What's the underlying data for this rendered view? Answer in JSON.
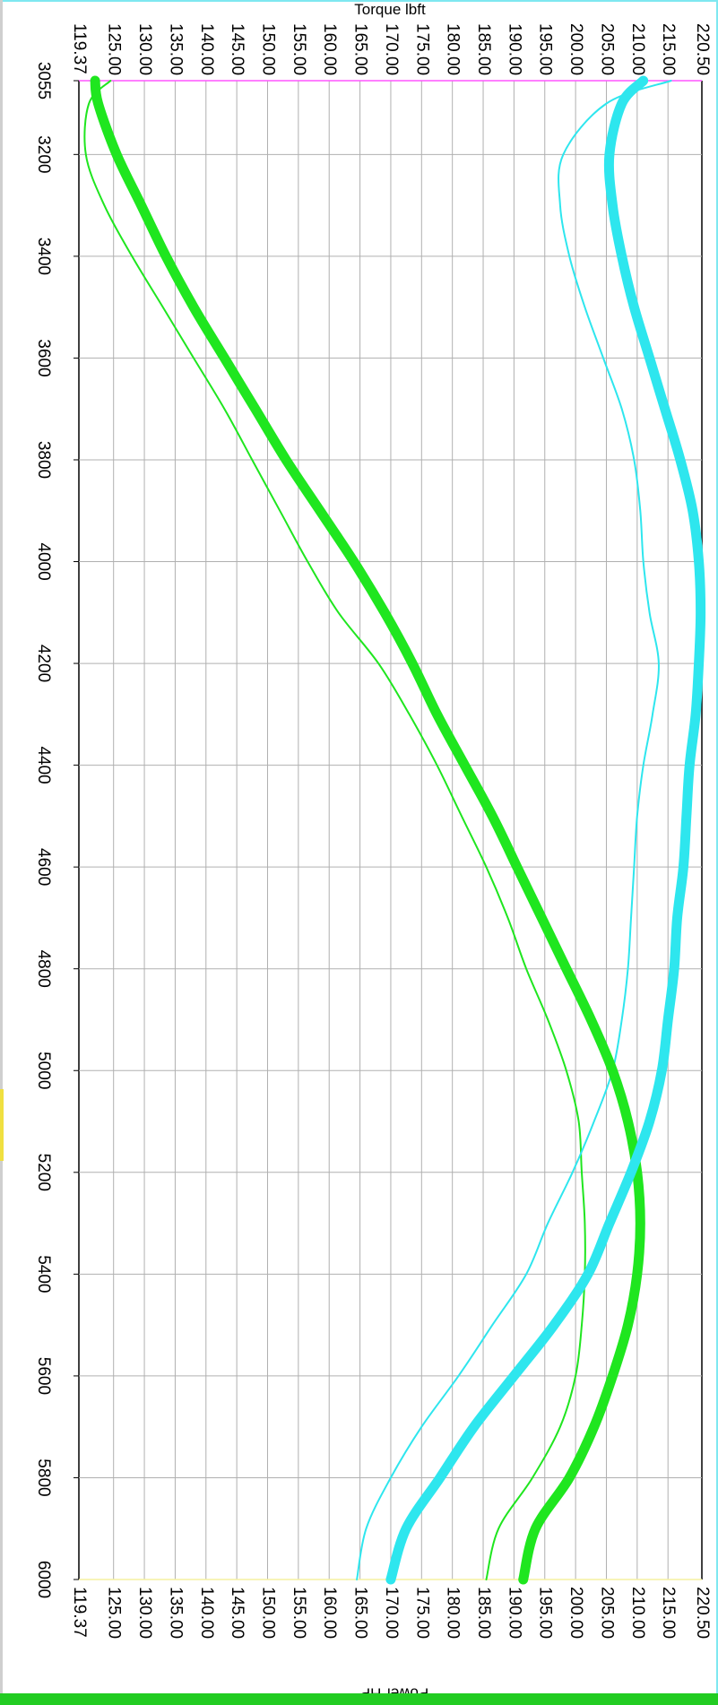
{
  "chart_data": {
    "type": "line",
    "orientation": "rotated-90-clockwise",
    "x_axis": {
      "ticks": [
        3055,
        3200,
        3400,
        3600,
        3800,
        4000,
        4200,
        4400,
        4600,
        4800,
        5000,
        5200,
        5400,
        5600,
        5800,
        6000
      ],
      "tick_labels": [
        "3055",
        "3200",
        "3400",
        "3600",
        "3800",
        "4000",
        "4200",
        "4400",
        "4600",
        "4800",
        "5000",
        "5200",
        "5400",
        "5600",
        "5800",
        "6000"
      ],
      "range": [
        3055,
        6000
      ]
    },
    "y_axis_top": {
      "label": "Torque lbft",
      "range": [
        119.37,
        220.5
      ],
      "tick_labels": [
        "119.37",
        "125.00",
        "130.00",
        "135.00",
        "140.00",
        "145.00",
        "150.00",
        "155.00",
        "160.00",
        "165.00",
        "170.00",
        "175.00",
        "180.00",
        "185.00",
        "190.00",
        "195.00",
        "200.00",
        "205.00",
        "210.00",
        "215.00",
        "220.50"
      ]
    },
    "y_axis_bottom": {
      "label": "Power HP",
      "range": [
        119.37,
        220.5
      ],
      "tick_labels": [
        "119.37",
        "125.00",
        "130.00",
        "135.00",
        "140.00",
        "145.00",
        "150.00",
        "155.00",
        "160.00",
        "165.00",
        "170.00",
        "175.00",
        "180.00",
        "185.00",
        "190.00",
        "195.00",
        "200.00",
        "205.00",
        "210.00",
        "215.00",
        "220.50"
      ]
    },
    "grid": true,
    "legend": "none",
    "series": [
      {
        "color": "#1fe61f",
        "style": "thick",
        "x": [
          3055,
          3100,
          3200,
          3300,
          3400,
          3500,
          3600,
          3700,
          3800,
          3900,
          4000,
          4100,
          4200,
          4300,
          4400,
          4500,
          4600,
          4700,
          4800,
          4900,
          5000,
          5100,
          5200,
          5300,
          5400,
          5500,
          5600,
          5700,
          5800,
          5900,
          6000
        ],
        "values": [
          122,
          122.5,
          125.5,
          129.5,
          133.5,
          138,
          143,
          148,
          153,
          158.5,
          164,
          169,
          173.5,
          177.5,
          182,
          186.5,
          190.5,
          194.5,
          198.5,
          202.5,
          206,
          208.5,
          210,
          210.5,
          210,
          208.5,
          206,
          203,
          199,
          193.5,
          191.5
        ]
      },
      {
        "color": "#1fe61f",
        "style": "thin",
        "x": [
          3055,
          3100,
          3200,
          3300,
          3400,
          3500,
          3600,
          3700,
          3800,
          3900,
          4000,
          4100,
          4200,
          4300,
          4400,
          4500,
          4600,
          4700,
          4800,
          4900,
          5000,
          5100,
          5200,
          5300,
          5400,
          5500,
          5600,
          5700,
          5800,
          5900,
          6000
        ],
        "values": [
          124.5,
          121,
          120.5,
          123.5,
          128,
          133,
          138,
          143,
          147.5,
          152,
          156.5,
          161.5,
          168,
          173,
          177.5,
          181.5,
          185.5,
          189,
          192,
          195.5,
          198.5,
          200.5,
          201,
          201.5,
          201.5,
          201,
          200,
          197.5,
          193,
          187.5,
          185.5
        ]
      },
      {
        "color": "#2ee6ee",
        "style": "thick",
        "x": [
          3055,
          3100,
          3200,
          3300,
          3400,
          3500,
          3600,
          3700,
          3800,
          3900,
          4000,
          4100,
          4200,
          4300,
          4400,
          4500,
          4600,
          4700,
          4800,
          4900,
          5000,
          5100,
          5200,
          5300,
          5400,
          5500,
          5600,
          5700,
          5800,
          5900,
          6000
        ],
        "values": [
          211,
          207.5,
          205.5,
          206,
          207.5,
          209.5,
          212,
          214.5,
          217,
          219,
          220,
          220.3,
          220,
          219.5,
          218.5,
          218,
          217.5,
          216.5,
          216,
          215,
          214,
          212,
          209,
          205.5,
          202,
          196.5,
          190,
          183.5,
          178,
          172.5,
          170
        ]
      },
      {
        "color": "#2ee6ee",
        "style": "thin",
        "x": [
          3055,
          3100,
          3200,
          3300,
          3400,
          3500,
          3600,
          3700,
          3800,
          3900,
          4000,
          4100,
          4200,
          4300,
          4400,
          4500,
          4600,
          4700,
          4800,
          4900,
          5000,
          5100,
          5200,
          5300,
          5400,
          5500,
          5600,
          5700,
          5800,
          5900,
          6000
        ],
        "values": [
          215.5,
          205,
          198,
          197.5,
          199,
          201.5,
          204.5,
          207.5,
          209.5,
          210.5,
          211,
          212,
          213.5,
          212.5,
          211,
          210,
          209.5,
          209,
          208.5,
          207.5,
          206,
          203,
          199.5,
          195.5,
          192,
          186.5,
          181,
          175,
          170,
          166,
          164.5
        ]
      }
    ],
    "colors": {
      "grid": "#b0b0b0",
      "axis": "#000000",
      "top_border": "#ff55ff",
      "bottom_border": "#f5f0a0",
      "bottom_strip": "#22cc22",
      "frame": "#7fe8f0"
    }
  }
}
